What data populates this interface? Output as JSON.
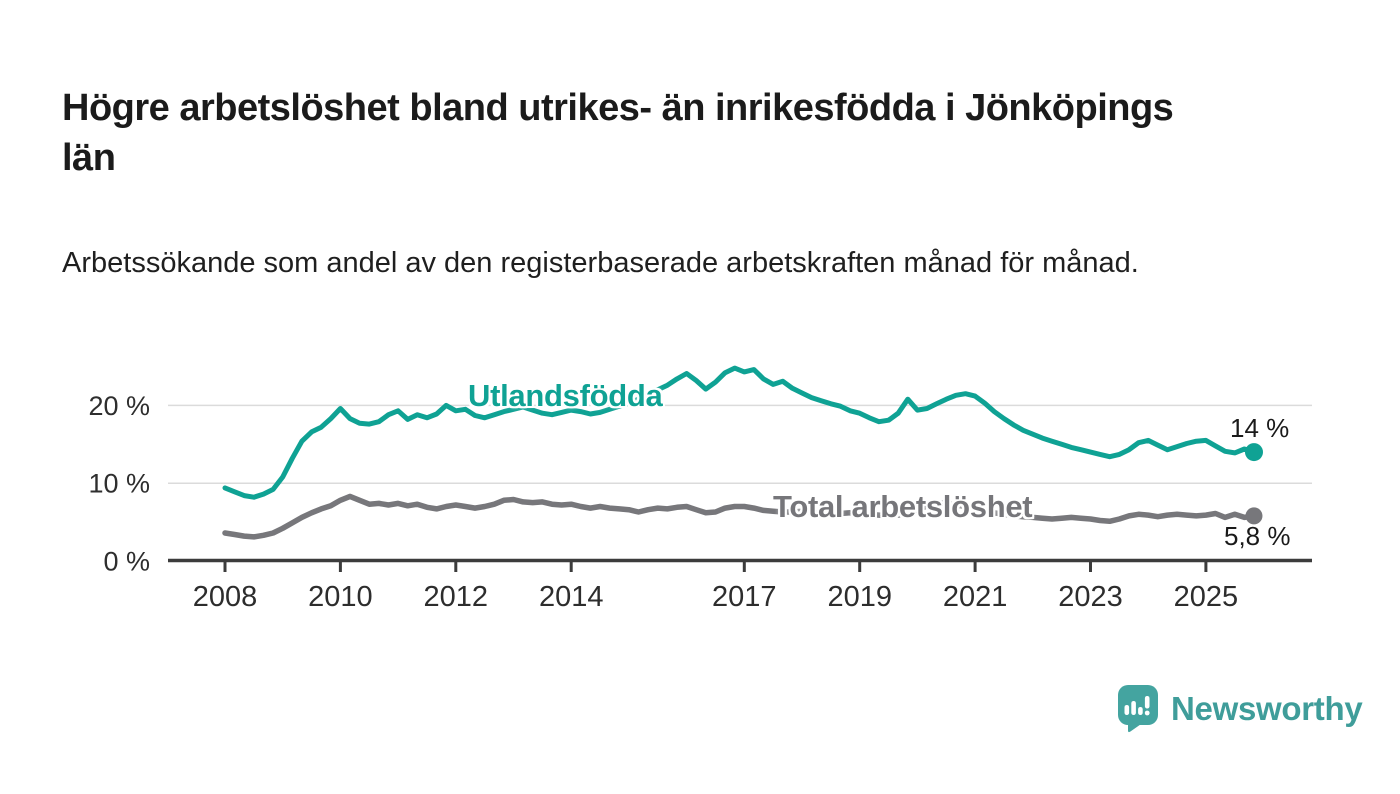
{
  "header": {
    "title": "Högre arbetslöshet bland utrikes- än inrikesfödda i Jönköpings län",
    "subtitle": "Arbetssökande som andel av den registerbaserade arbetskraften månad för månad."
  },
  "chart_data": {
    "type": "line",
    "title": "Högre arbetslöshet bland utrikes- än inrikesfödda i Jönköpings län",
    "subtitle": "Arbetssökande som andel av den registerbaserade arbetskraften månad för månad.",
    "x_unit": "year (monthly data)",
    "x_start": 2008.0,
    "x_step_years": 0.1666667,
    "x_end": 2025.8333,
    "ylim": [
      0,
      27
    ],
    "grid": "horizontal",
    "legend_position": "inline-on-line",
    "x_ticks": [
      {
        "label": "2008",
        "year": 2008
      },
      {
        "label": "2010",
        "year": 2010
      },
      {
        "label": "2012",
        "year": 2012
      },
      {
        "label": "2014",
        "year": 2014
      },
      {
        "label": "2017",
        "year": 2017
      },
      {
        "label": "2019",
        "year": 2019
      },
      {
        "label": "2021",
        "year": 2021
      },
      {
        "label": "2023",
        "year": 2023
      },
      {
        "label": "2025",
        "year": 2025
      }
    ],
    "y_ticks": [
      {
        "label": "0 %",
        "value": 0
      },
      {
        "label": "10 %",
        "value": 10
      },
      {
        "label": "20 %",
        "value": 20
      }
    ],
    "series": [
      {
        "name": "Utlandsfödda",
        "color": "#0FA294",
        "end_label": "14 %",
        "end_value": 14.0,
        "values": [
          9.4,
          8.9,
          8.4,
          8.2,
          8.6,
          9.2,
          10.8,
          13.2,
          15.4,
          16.6,
          17.2,
          18.3,
          19.6,
          18.3,
          17.7,
          17.6,
          17.9,
          18.8,
          19.3,
          18.2,
          18.8,
          18.4,
          18.9,
          20.0,
          19.3,
          19.5,
          18.7,
          18.4,
          18.8,
          19.2,
          19.5,
          19.8,
          19.4,
          19.0,
          18.8,
          19.1,
          19.4,
          19.2,
          18.9,
          19.1,
          19.5,
          19.9,
          20.3,
          20.8,
          21.4,
          22.0,
          22.6,
          23.4,
          24.1,
          23.2,
          22.1,
          23.0,
          24.2,
          24.8,
          24.3,
          24.6,
          23.4,
          22.7,
          23.1,
          22.2,
          21.6,
          21.0,
          20.6,
          20.2,
          19.9,
          19.3,
          19.0,
          18.4,
          17.9,
          18.1,
          19.0,
          20.8,
          19.4,
          19.6,
          20.2,
          20.8,
          21.3,
          21.5,
          21.2,
          20.3,
          19.2,
          18.3,
          17.5,
          16.8,
          16.3,
          15.8,
          15.4,
          15.0,
          14.6,
          14.3,
          14.0,
          13.7,
          13.4,
          13.7,
          14.3,
          15.2,
          15.5,
          14.9,
          14.3,
          14.7,
          15.1,
          15.4,
          15.5,
          14.8,
          14.1,
          13.9,
          14.4,
          14.0
        ]
      },
      {
        "name": "Total arbetslöshet",
        "color": "#77777B",
        "end_label": "5,8 %",
        "end_value": 5.8,
        "values": [
          3.6,
          3.4,
          3.2,
          3.1,
          3.3,
          3.6,
          4.2,
          4.9,
          5.6,
          6.2,
          6.7,
          7.1,
          7.8,
          8.3,
          7.8,
          7.3,
          7.4,
          7.2,
          7.4,
          7.1,
          7.3,
          6.9,
          6.7,
          7.0,
          7.2,
          7.0,
          6.8,
          7.0,
          7.3,
          7.8,
          7.9,
          7.6,
          7.5,
          7.6,
          7.3,
          7.2,
          7.3,
          7.0,
          6.8,
          7.0,
          6.8,
          6.7,
          6.6,
          6.3,
          6.6,
          6.8,
          6.7,
          6.9,
          7.0,
          6.6,
          6.2,
          6.3,
          6.8,
          7.0,
          7.0,
          6.8,
          6.5,
          6.4,
          6.3,
          6.3,
          6.4,
          6.2,
          6.1,
          6.0,
          6.1,
          6.2,
          6.1,
          6.0,
          5.9,
          5.8,
          5.9,
          6.1,
          6.5,
          7.1,
          7.5,
          7.4,
          7.2,
          7.0,
          6.8,
          6.5,
          6.2,
          6.0,
          5.8,
          5.7,
          5.6,
          5.5,
          5.4,
          5.5,
          5.6,
          5.5,
          5.4,
          5.2,
          5.1,
          5.4,
          5.8,
          6.0,
          5.9,
          5.7,
          5.9,
          6.0,
          5.9,
          5.8,
          5.9,
          6.1,
          5.6,
          6.0,
          5.6,
          5.8
        ]
      }
    ]
  },
  "branding": {
    "logo_text": "Newsworthy",
    "logo_color": "#3F9D9A",
    "logo_icon": "speech-bubble-bar-chart-icon"
  }
}
